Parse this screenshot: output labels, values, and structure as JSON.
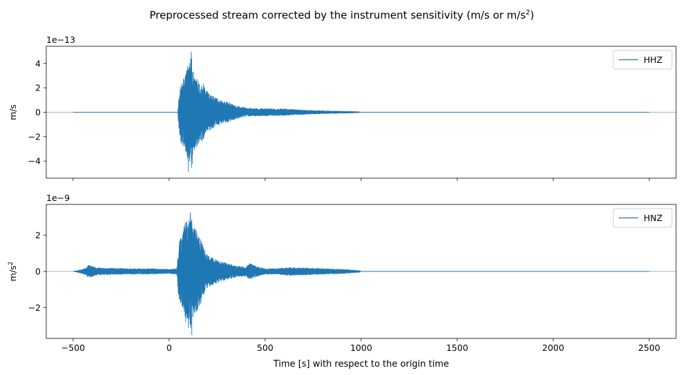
{
  "figure": {
    "suptitle_main": "Preprocessed stream corrected by the instrument sensitivity (m/s or m/s",
    "suptitle_sup": "2",
    "suptitle_end": ")",
    "xlabel": "Time [s] with respect to the origin time"
  },
  "chart_data": [
    {
      "type": "line",
      "series": [
        {
          "name": "HHZ",
          "color": "#1f77b4"
        }
      ],
      "ylabel": "m/s",
      "ylabel_sup": "",
      "offset_text": "1e−13",
      "offset_exp": -13,
      "x_range": [
        -500,
        2500
      ],
      "xlim": [
        -640,
        2640
      ],
      "ylim": [
        -5.4,
        5.4
      ],
      "yticks": [
        -4,
        -2,
        0,
        2,
        4
      ],
      "ytick_labels": [
        "−4",
        "−2",
        "0",
        "2",
        "4"
      ],
      "xticks": [
        -500,
        0,
        500,
        1000,
        1500,
        2000,
        2500
      ],
      "show_xtick_labels": false,
      "legend_position": "upper right",
      "zero_line": true,
      "envelope": [
        [
          45,
          0.1
        ],
        [
          50,
          1.2
        ],
        [
          60,
          2.5
        ],
        [
          75,
          2.8
        ],
        [
          90,
          3.6
        ],
        [
          105,
          4.0
        ],
        [
          115,
          4.95
        ],
        [
          125,
          3.5
        ],
        [
          140,
          3.0
        ],
        [
          160,
          2.3
        ],
        [
          175,
          2.5
        ],
        [
          190,
          1.8
        ],
        [
          210,
          1.5
        ],
        [
          240,
          1.2
        ],
        [
          270,
          0.95
        ],
        [
          300,
          0.85
        ],
        [
          330,
          0.65
        ],
        [
          360,
          0.5
        ],
        [
          400,
          0.35
        ],
        [
          450,
          0.3
        ],
        [
          500,
          0.3
        ],
        [
          550,
          0.28
        ],
        [
          600,
          0.27
        ],
        [
          650,
          0.22
        ],
        [
          700,
          0.18
        ],
        [
          800,
          0.12
        ],
        [
          900,
          0.08
        ],
        [
          980,
          0.05
        ],
        [
          1000,
          0.0
        ]
      ],
      "peaks": [
        [
          115,
          4.95
        ],
        [
          100,
          -4.85
        ],
        [
          120,
          -4.2
        ],
        [
          88,
          3.1
        ]
      ]
    },
    {
      "type": "line",
      "series": [
        {
          "name": "HNZ",
          "color": "#1f77b4"
        }
      ],
      "ylabel": "m/s",
      "ylabel_sup": "2",
      "offset_text": "1e−9",
      "offset_exp": -9,
      "x_range": [
        -500,
        2500
      ],
      "xlim": [
        -640,
        2640
      ],
      "ylim": [
        -3.7,
        3.7
      ],
      "yticks": [
        -2,
        0,
        2
      ],
      "ytick_labels": [
        "−2",
        "0",
        "2"
      ],
      "xticks": [
        -500,
        0,
        500,
        1000,
        1500,
        2000,
        2500
      ],
      "xtick_labels": [
        "−500",
        "0",
        "500",
        "1000",
        "1500",
        "2000",
        "2500"
      ],
      "show_xtick_labels": true,
      "legend_position": "upper right",
      "zero_line": true,
      "envelope": [
        [
          -500,
          0.0
        ],
        [
          -480,
          0.04
        ],
        [
          -440,
          0.15
        ],
        [
          -420,
          0.35
        ],
        [
          -400,
          0.3
        ],
        [
          -380,
          0.2
        ],
        [
          -300,
          0.18
        ],
        [
          -200,
          0.15
        ],
        [
          -100,
          0.15
        ],
        [
          0,
          0.12
        ],
        [
          40,
          0.15
        ],
        [
          50,
          1.6
        ],
        [
          70,
          2.1
        ],
        [
          85,
          2.8
        ],
        [
          100,
          2.6
        ],
        [
          110,
          3.25
        ],
        [
          125,
          2.5
        ],
        [
          145,
          2.2
        ],
        [
          165,
          1.8
        ],
        [
          190,
          1.0
        ],
        [
          220,
          0.75
        ],
        [
          260,
          0.6
        ],
        [
          300,
          0.45
        ],
        [
          350,
          0.3
        ],
        [
          400,
          0.25
        ],
        [
          420,
          0.45
        ],
        [
          450,
          0.3
        ],
        [
          500,
          0.15
        ],
        [
          560,
          0.15
        ],
        [
          620,
          0.22
        ],
        [
          700,
          0.2
        ],
        [
          800,
          0.15
        ],
        [
          900,
          0.12
        ],
        [
          990,
          0.05
        ],
        [
          1000,
          0.0
        ]
      ],
      "peaks": [
        [
          110,
          3.25
        ],
        [
          118,
          -3.5
        ],
        [
          100,
          -3.1
        ],
        [
          92,
          2.7
        ]
      ]
    }
  ]
}
